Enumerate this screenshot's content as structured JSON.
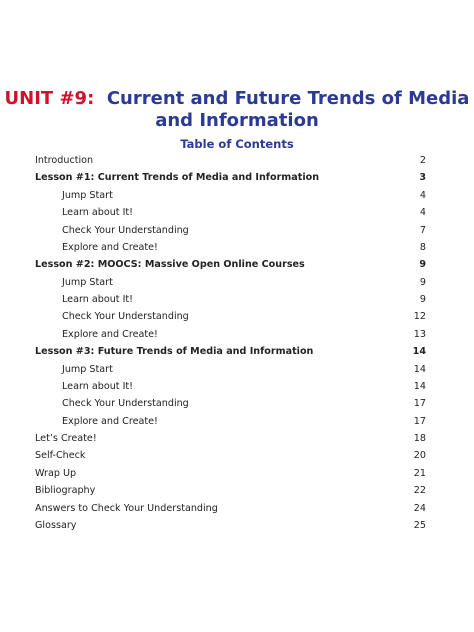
{
  "title": {
    "unit": "UNIT #9:",
    "line1": "Current and Future Trends of Media",
    "line2": "and Information"
  },
  "toc": {
    "heading": "Table of Contents",
    "entries": [
      {
        "label": "Introduction",
        "page": 2,
        "level": 0,
        "bold": false
      },
      {
        "label": "Lesson #1: Current Trends of Media and Information",
        "page": 3,
        "level": 0,
        "bold": true
      },
      {
        "label": "Jump Start",
        "page": 4,
        "level": 1,
        "bold": false
      },
      {
        "label": "Learn about It!",
        "page": 4,
        "level": 1,
        "bold": false
      },
      {
        "label": "Check Your Understanding",
        "page": 7,
        "level": 1,
        "bold": false
      },
      {
        "label": "Explore and Create!",
        "page": 8,
        "level": 1,
        "bold": false
      },
      {
        "label": "Lesson #2: MOOCS: Massive Open Online Courses",
        "page": 9,
        "level": 0,
        "bold": true
      },
      {
        "label": "Jump Start",
        "page": 9,
        "level": 1,
        "bold": false
      },
      {
        "label": "Learn about It!",
        "page": 9,
        "level": 1,
        "bold": false
      },
      {
        "label": "Check Your Understanding",
        "page": 12,
        "level": 1,
        "bold": false
      },
      {
        "label": "Explore and Create!",
        "page": 13,
        "level": 1,
        "bold": false
      },
      {
        "label": "Lesson #3: Future Trends of Media and Information",
        "page": 14,
        "level": 0,
        "bold": true
      },
      {
        "label": "Jump Start",
        "page": 14,
        "level": 1,
        "bold": false
      },
      {
        "label": "Learn about It!",
        "page": 14,
        "level": 1,
        "bold": false
      },
      {
        "label": "Check Your Understanding",
        "page": 17,
        "level": 1,
        "bold": false
      },
      {
        "label": "Explore and Create!",
        "page": 17,
        "level": 1,
        "bold": false
      },
      {
        "label": "Let’s Create!",
        "page": 18,
        "level": 0,
        "bold": false
      },
      {
        "label": "Self-Check",
        "page": 20,
        "level": 0,
        "bold": false
      },
      {
        "label": "Wrap Up",
        "page": 21,
        "level": 0,
        "bold": false
      },
      {
        "label": "Bibliography",
        "page": 22,
        "level": 0,
        "bold": false
      },
      {
        "label": "Answers to Check Your Understanding",
        "page": 24,
        "level": 0,
        "bold": false
      },
      {
        "label": "Glossary",
        "page": 25,
        "level": 0,
        "bold": false
      }
    ]
  }
}
